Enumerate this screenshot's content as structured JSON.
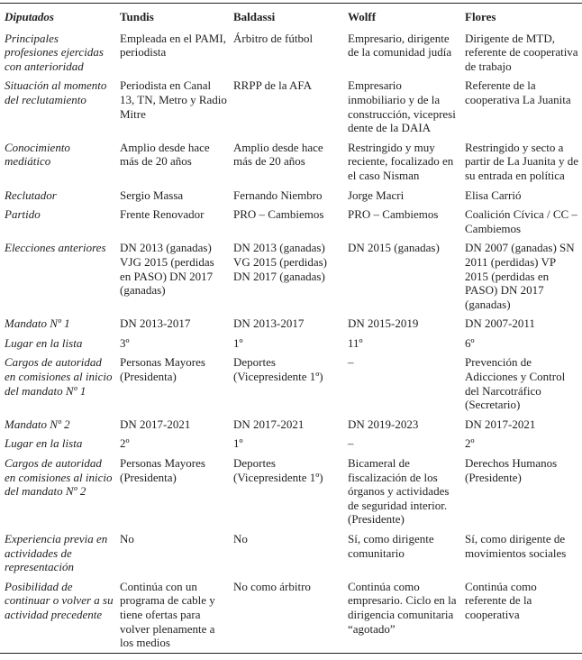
{
  "headers": [
    "Diputados",
    "Tundis",
    "Baldassi",
    "Wolff",
    "Flores"
  ],
  "rows": [
    {
      "label": "Principales profesiones ejercidas con anterioridad",
      "cells": [
        "Empleada en el PAMI, periodista",
        "Árbitro de fútbol",
        "Empresario, dirigente de la comunidad judía",
        "Dirigente de MTD, referente de cooperativa de trabajo"
      ]
    },
    {
      "label": "Situación al momento del reclutamiento",
      "cells": [
        "Periodista en Canal 13, TN, Metro y Radio Mitre",
        "RRPP de la AFA",
        "Empresario inmobiliario y de la construcción, vicepresi dente de la DAIA",
        "Referente de la cooperativa La Juanita"
      ]
    },
    {
      "label": "Conocimiento mediático",
      "cells": [
        "Amplio desde hace más de 20 años",
        "Amplio desde hace más de 20 años",
        "Restringido y muy reciente, focalizado en el caso Nisman",
        "Restringido y secto a partir de La Juanita y de su entrada en política"
      ]
    },
    {
      "label": "Reclutador",
      "cells": [
        "Sergio Massa",
        "Fernando Niembro",
        "Jorge Macri",
        "Elisa Carrió"
      ]
    },
    {
      "label": "Partido",
      "cells": [
        "Frente Renovador",
        "PRO – Cambiemos",
        "PRO – Cambiemos",
        "Coalición Cívica / CC – Cambiemos"
      ]
    },
    {
      "label": "Elecciones anteriores",
      "cells": [
        "DN 2013 (ganadas) VJG 2015 (perdidas en PASO) DN 2017 (ganadas)",
        "DN 2013 (ganadas) VG 2015 (perdidas) DN 2017 (ganadas)",
        "DN 2015 (ganadas)",
        "DN 2007 (ganadas) SN 2011 (perdidas) VP 2015 (perdidas en PASO) DN 2017 (ganadas)"
      ]
    },
    {
      "label": "Mandato Nº 1",
      "cells": [
        "DN 2013-2017",
        "DN 2013-2017",
        "DN 2015-2019",
        "DN 2007-2011"
      ]
    },
    {
      "label": "Lugar en la lista",
      "cells": [
        "3º",
        "1º",
        "11º",
        "6º"
      ]
    },
    {
      "label": "Cargos de autoridad en comisiones al inicio del mandato Nº 1",
      "cells": [
        "Personas Mayores (Presidenta)",
        "Deportes (Vicepresidente 1º)",
        "–",
        "Prevención de Adicciones y Control del Narcotráfico (Secretario)"
      ]
    },
    {
      "label": "Mandato Nº 2",
      "cells": [
        "DN 2017-2021",
        "DN 2017-2021",
        "DN 2019-2023",
        "DN 2017-2021"
      ]
    },
    {
      "label": "Lugar en la lista",
      "cells": [
        "2º",
        "1º",
        "–",
        "2º"
      ]
    },
    {
      "label": "Cargos de autoridad en comisiones al inicio del mandato Nº 2",
      "cells": [
        "Personas Mayores (Presidenta)",
        "Deportes (Vicepresidente 1º)",
        "Bicameral de fiscalización de los órganos y actividades de seguridad interior. (Presidente)",
        "Derechos Humanos (Presidente)"
      ]
    },
    {
      "label": "Experiencia previa en actividades de representación",
      "cells": [
        "No",
        "No",
        "Sí, como dirigente comunitario",
        "Sí, como dirigente de movimientos sociales"
      ]
    },
    {
      "label": "Posibilidad de continuar o volver a su actividad precedente",
      "cells": [
        "Continúa con un programa de cable y tiene ofertas para volver plenamente a los medios",
        "No como árbitro",
        "Continúa como empresario. Ciclo en la dirigencia comunitaria “agotado”",
        "Continúa como referente de la cooperativa"
      ]
    }
  ]
}
